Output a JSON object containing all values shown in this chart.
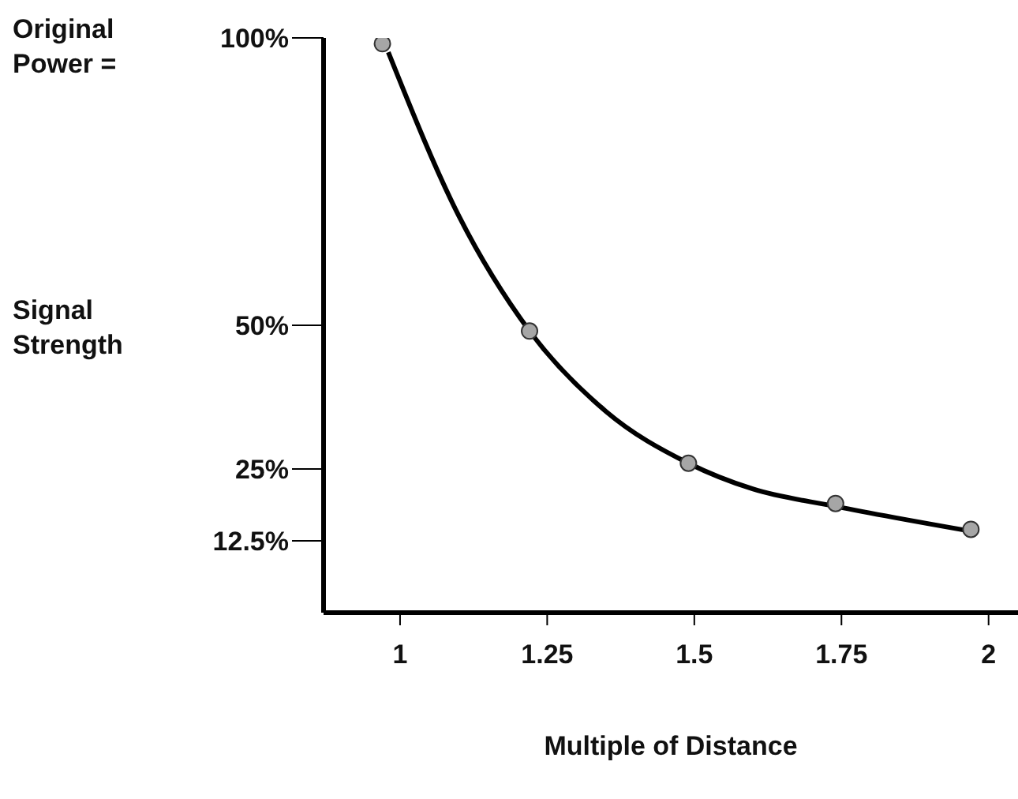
{
  "chart_data": {
    "type": "scatter",
    "xlabel": "Multiple of Distance",
    "ylabel": "Signal Strength",
    "annotations": [
      "Original Power ="
    ],
    "xlim": [
      0.87,
      2.05
    ],
    "xticks": [
      1,
      1.25,
      1.5,
      1.75,
      2
    ],
    "ylim": [
      0,
      100
    ],
    "yticks": [
      {
        "value": 12.5,
        "label": "12.5%"
      },
      {
        "value": 25,
        "label": "25%"
      },
      {
        "value": 50,
        "label": "50%"
      },
      {
        "value": 100,
        "label": "100%"
      }
    ],
    "series": [
      {
        "type": "line",
        "color": "#000000",
        "marker": "none",
        "line_style": "solid",
        "x": [
          0.98,
          1.1,
          1.22,
          1.35,
          1.49,
          1.6,
          1.74,
          1.98
        ],
        "values": [
          97.5,
          69,
          49,
          35,
          26,
          21.5,
          18.5,
          14
        ]
      },
      {
        "color": "#a6a6a6",
        "marker": "circle",
        "x": [
          0.97,
          1.22,
          1.49,
          1.74,
          1.97
        ],
        "values": [
          99,
          49,
          26,
          19,
          14.5
        ]
      }
    ]
  }
}
